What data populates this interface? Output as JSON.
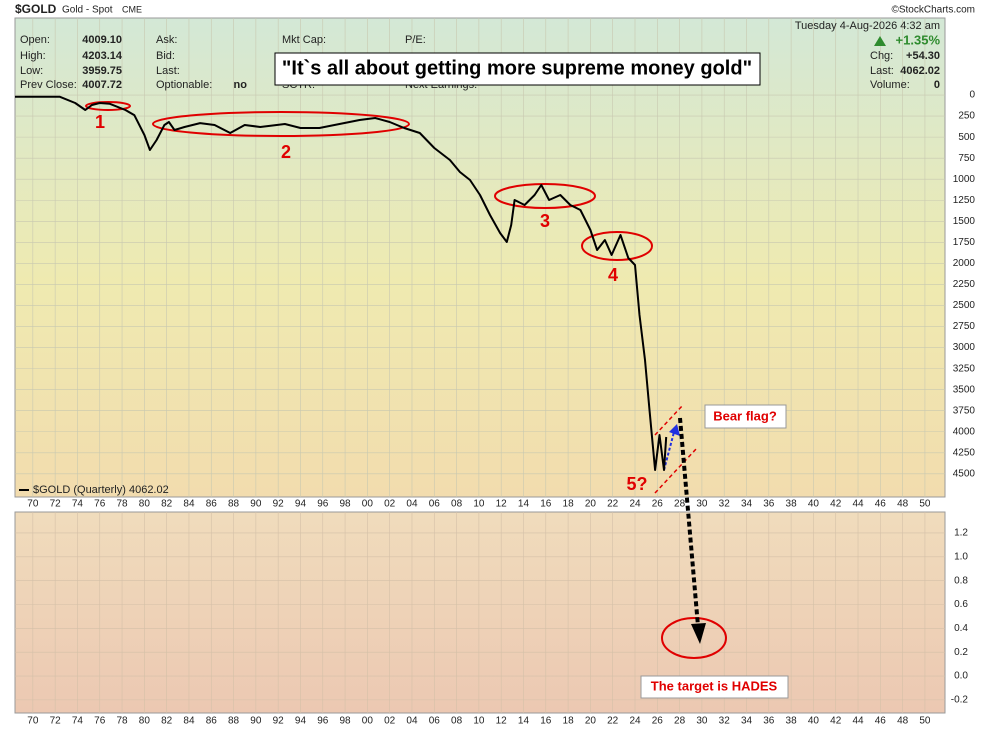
{
  "header": {
    "symbol": "$GOLD",
    "name": "Gold - Spot",
    "exchange": "CME",
    "brand": "©StockCharts.com",
    "date": "Tuesday  4-Aug-2026  4:32 am",
    "fields": [
      [
        "Open:",
        "4009.10"
      ],
      [
        "High:",
        "4203.14"
      ],
      [
        "Low:",
        "3959.75"
      ],
      [
        "Prev Close:",
        "4007.72"
      ]
    ],
    "fields2": [
      "Ask:",
      "Bid:",
      "Last:",
      "Optionable:"
    ],
    "optionable": "no",
    "fields3": [
      "Mkt Cap:",
      "SCTR:"
    ],
    "fields4": [
      "P/E:",
      "Next Earnings:"
    ],
    "change_pct": "+1.35%",
    "right": [
      [
        "Chg:",
        "+54.30"
      ],
      [
        "Last:",
        "4062.02"
      ],
      [
        "Volume:",
        "0"
      ]
    ]
  },
  "annotations": {
    "quote": "\"It`s all about getting more supreme money gold\"",
    "labels": [
      "1",
      "2",
      "3",
      "4",
      "5?"
    ],
    "bear_flag": "Bear flag?",
    "target": "The target is HADES"
  },
  "chart_data": {
    "type": "line",
    "x": [
      1968.4,
      1972.4,
      1973.8,
      1974.7,
      1975.3,
      1976,
      1976.9,
      1978.3,
      1979.1,
      1980,
      1980.5,
      1981.1,
      1981.8,
      1982.2,
      1982.7,
      1983.6,
      1985,
      1986.3,
      1987.7,
      1989,
      1990.4,
      1992.6,
      1994,
      1995.7,
      1997.5,
      1999.3,
      2000.7,
      2002,
      2003.3,
      2004.7,
      2006,
      2007.4,
      2008.3,
      2009.2,
      2010.1,
      2011,
      2011.9,
      2012.5,
      2012.9,
      2013.2,
      2014.1,
      2015,
      2015.6,
      2016.3,
      2017.3,
      2018.2,
      2019.1,
      2020,
      2020.6,
      2021.3,
      2021.9,
      2022.7,
      2023.4,
      2024,
      2024.4,
      2024.9,
      2025.3,
      2025.8,
      2026.2,
      2026.6,
      2026.8
    ],
    "series": [
      {
        "name": "$GOLD (Quarterly) 4062.02",
        "color": "#000000",
        "values": [
          20,
          20,
          95,
          178,
          119,
          95,
          104,
          178,
          238,
          475,
          653,
          534,
          356,
          320,
          416,
          380,
          333,
          356,
          451,
          356,
          380,
          344,
          392,
          392,
          344,
          297,
          273,
          320,
          392,
          451,
          629,
          772,
          914,
          1009,
          1188,
          1425,
          1639,
          1746,
          1544,
          1247,
          1306,
          1188,
          1069,
          1247,
          1188,
          1306,
          1366,
          1603,
          1841,
          1722,
          1900,
          1663,
          1936,
          2019,
          2613,
          3147,
          3741,
          4454,
          4038,
          4454,
          4062
        ]
      }
    ],
    "xlim": [
      1968.4,
      2051.8
    ],
    "xticks": [
      {
        "value": 1970,
        "label": "70"
      },
      {
        "value": 1972,
        "label": "72"
      },
      {
        "value": 1974,
        "label": "74"
      },
      {
        "value": 1976,
        "label": "76"
      },
      {
        "value": 1978,
        "label": "78"
      },
      {
        "value": 1980,
        "label": "80"
      },
      {
        "value": 1982,
        "label": "82"
      },
      {
        "value": 1984,
        "label": "84"
      },
      {
        "value": 1986,
        "label": "86"
      },
      {
        "value": 1988,
        "label": "88"
      },
      {
        "value": 1990,
        "label": "90"
      },
      {
        "value": 1992,
        "label": "92"
      },
      {
        "value": 1994,
        "label": "94"
      },
      {
        "value": 1996,
        "label": "96"
      },
      {
        "value": 1998,
        "label": "98"
      },
      {
        "value": 2000,
        "label": "00"
      },
      {
        "value": 2002,
        "label": "02"
      },
      {
        "value": 2004,
        "label": "04"
      },
      {
        "value": 2006,
        "label": "06"
      },
      {
        "value": 2008,
        "label": "08"
      },
      {
        "value": 2010,
        "label": "10"
      },
      {
        "value": 2012,
        "label": "12"
      },
      {
        "value": 2014,
        "label": "14"
      },
      {
        "value": 2016,
        "label": "16"
      },
      {
        "value": 2018,
        "label": "18"
      },
      {
        "value": 2020,
        "label": "20"
      },
      {
        "value": 2022,
        "label": "22"
      },
      {
        "value": 2024,
        "label": "24"
      },
      {
        "value": 2026,
        "label": "26"
      },
      {
        "value": 2028,
        "label": "28"
      },
      {
        "value": 2030,
        "label": "30"
      },
      {
        "value": 2032,
        "label": "32"
      },
      {
        "value": 2034,
        "label": "34"
      },
      {
        "value": 2036,
        "label": "36"
      },
      {
        "value": 2038,
        "label": "38"
      },
      {
        "value": 2040,
        "label": "40"
      },
      {
        "value": 2042,
        "label": "42"
      },
      {
        "value": 2044,
        "label": "44"
      },
      {
        "value": 2046,
        "label": "46"
      },
      {
        "value": 2048,
        "label": "48"
      },
      {
        "value": 2050,
        "label": "50"
      }
    ],
    "ylim": [
      4775,
      -915
    ],
    "yticks": [
      0,
      250,
      500,
      750,
      1000,
      1250,
      1500,
      1750,
      2000,
      2250,
      2500,
      2750,
      3000,
      3250,
      3500,
      3750,
      4000,
      4250,
      4500
    ],
    "grid": true,
    "lower_panel": {
      "ylim": [
        -0.31,
        1.376
      ],
      "yticks": [
        {
          "value": -0.2,
          "label": "-0.2"
        },
        {
          "value": 0,
          "label": "0.0"
        },
        0.2,
        0.4,
        0.6,
        0.8,
        {
          "value": 1,
          "label": "1.0"
        },
        1.2
      ]
    }
  }
}
